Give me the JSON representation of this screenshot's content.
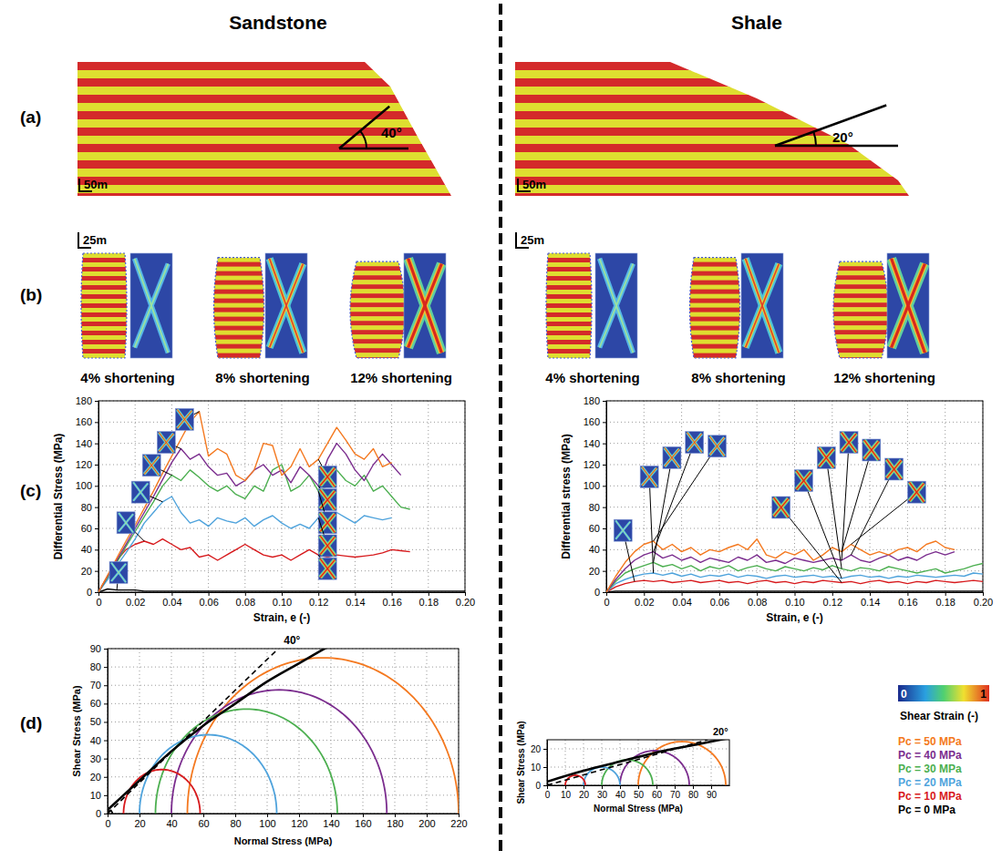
{
  "figure": {
    "columns": [
      {
        "title": "Sandstone",
        "slope_angle": "40°",
        "scale_a": "50m",
        "scale_b": "25m",
        "stages": [
          "4% shortening",
          "8% shortening",
          "12% shortening"
        ]
      },
      {
        "title": "Shale",
        "slope_angle": "20°",
        "scale_a": "50m",
        "scale_b": "25m",
        "stages": [
          "4% shortening",
          "8% shortening",
          "12% shortening"
        ]
      }
    ],
    "row_labels": [
      "(a)",
      "(b)",
      "(c)",
      "(d)"
    ],
    "colorbar": {
      "label": "Shear Strain (-)",
      "range": [
        0,
        1
      ],
      "ticks": [
        0,
        1
      ]
    }
  },
  "chart_data": [
    {
      "type": "line",
      "x_label": "Strain, e (-)",
      "y_label": "Differential Stress (MPa)",
      "xlim": [
        0,
        0.2
      ],
      "xticks": [
        0,
        0.02,
        0.04,
        0.06,
        0.08,
        {
          "value": 0.1,
          "label": "0.10"
        },
        0.12,
        0.14,
        0.16,
        0.18,
        {
          "value": 0.2,
          "label": "0.20"
        }
      ],
      "ylim": [
        0,
        180
      ],
      "yticks": [
        0,
        20,
        40,
        60,
        80,
        100,
        120,
        140,
        160,
        180
      ],
      "grid": true,
      "legend": "right",
      "x": [
        0,
        0.005,
        0.01,
        0.015,
        0.02,
        0.025,
        0.03,
        0.035,
        0.04,
        0.045,
        0.05,
        0.055,
        0.06,
        0.065,
        0.07,
        0.075,
        0.08,
        0.085,
        0.09,
        0.095,
        0.1,
        0.105,
        0.11,
        0.115,
        0.12,
        0.125,
        0.13,
        0.135,
        0.14,
        0.145,
        0.15,
        0.155,
        0.16,
        0.165,
        0.17,
        0.175,
        0.18,
        0.185,
        0.19,
        0.195,
        0.2
      ],
      "series": [
        {
          "name": "Pc = 50 MPa",
          "color": "#f47920",
          "values": [
            0,
            16,
            32,
            48,
            63,
            79,
            95,
            112,
            128,
            144,
            160,
            170,
            128,
            135,
            130,
            110,
            105,
            115,
            140,
            138,
            110,
            118,
            135,
            118,
            125,
            140,
            155,
            143,
            130,
            125,
            135,
            118,
            122,
            null,
            null,
            null,
            null,
            null,
            null,
            null,
            null
          ]
        },
        {
          "name": "Pc = 40 MPa",
          "color": "#7b2d8e",
          "values": [
            0,
            15,
            30,
            45,
            60,
            75,
            90,
            106,
            122,
            135,
            125,
            130,
            118,
            110,
            112,
            100,
            105,
            115,
            120,
            110,
            115,
            103,
            118,
            110,
            100,
            125,
            140,
            130,
            115,
            105,
            120,
            130,
            120,
            110,
            null,
            null,
            null,
            null,
            null,
            null,
            null
          ]
        },
        {
          "name": "Pc = 30 MPa",
          "color": "#4caf50",
          "values": [
            0,
            14,
            28,
            43,
            57,
            71,
            85,
            100,
            110,
            105,
            115,
            108,
            100,
            95,
            100,
            92,
            88,
            100,
            95,
            115,
            120,
            95,
            100,
            110,
            95,
            100,
            115,
            105,
            100,
            110,
            95,
            100,
            90,
            80,
            78,
            null,
            null,
            null,
            null,
            null,
            null
          ]
        },
        {
          "name": "Pc = 20 MPa",
          "color": "#4fa3dc",
          "values": [
            0,
            12,
            25,
            37,
            50,
            65,
            75,
            85,
            90,
            75,
            65,
            68,
            62,
            70,
            67,
            65,
            70,
            62,
            68,
            72,
            65,
            60,
            64,
            60,
            70,
            65,
            75,
            70,
            65,
            72,
            70,
            68,
            70,
            null,
            null,
            null,
            null,
            null,
            null,
            null,
            null
          ]
        },
        {
          "name": "Pc = 10 MPa",
          "color": "#d7191c",
          "values": [
            0,
            15,
            30,
            40,
            45,
            48,
            45,
            50,
            45,
            40,
            42,
            33,
            35,
            30,
            35,
            40,
            45,
            40,
            35,
            33,
            35,
            30,
            35,
            40,
            35,
            33,
            35,
            34,
            33,
            34,
            35,
            37,
            40,
            39,
            38,
            null,
            null,
            null,
            null,
            null,
            null
          ]
        },
        {
          "name": "Pc = 0 MPa",
          "color": "#000000",
          "values": [
            0,
            3,
            2,
            2,
            2,
            1,
            1,
            1,
            1,
            1,
            1,
            1,
            1,
            1,
            1,
            1,
            1,
            1,
            1,
            1,
            1,
            1,
            1,
            1,
            1,
            1,
            1,
            1,
            1,
            1,
            1,
            1,
            1,
            1,
            1,
            1,
            1,
            1,
            1,
            1,
            1
          ]
        }
      ]
    },
    {
      "type": "line",
      "x_label": "Strain, e (-)",
      "y_label": "Differential stress (MPa)",
      "xlim": [
        0,
        0.2
      ],
      "xticks": [
        0,
        0.02,
        0.04,
        0.06,
        0.08,
        {
          "value": 0.1,
          "label": "0.10"
        },
        0.12,
        0.14,
        0.16,
        0.18,
        {
          "value": 0.2,
          "label": "0.20"
        }
      ],
      "ylim": [
        0,
        180
      ],
      "yticks": [
        0,
        20,
        40,
        60,
        80,
        100,
        120,
        140,
        160,
        180
      ],
      "grid": true,
      "x": [
        0,
        0.005,
        0.01,
        0.015,
        0.02,
        0.025,
        0.03,
        0.035,
        0.04,
        0.045,
        0.05,
        0.055,
        0.06,
        0.065,
        0.07,
        0.075,
        0.08,
        0.085,
        0.09,
        0.095,
        0.1,
        0.105,
        0.11,
        0.115,
        0.12,
        0.125,
        0.13,
        0.135,
        0.14,
        0.145,
        0.15,
        0.155,
        0.16,
        0.165,
        0.17,
        0.175,
        0.18,
        0.185,
        0.19,
        0.195,
        0.2
      ],
      "series": [
        {
          "color": "#f47920",
          "values": [
            0,
            15,
            28,
            38,
            45,
            48,
            40,
            45,
            38,
            42,
            35,
            40,
            38,
            42,
            45,
            40,
            50,
            35,
            32,
            38,
            35,
            40,
            30,
            35,
            42,
            38,
            45,
            40,
            35,
            38,
            35,
            40,
            42,
            38,
            45,
            48,
            42,
            40,
            null,
            null,
            null
          ]
        },
        {
          "color": "#7b2d8e",
          "values": [
            0,
            12,
            22,
            30,
            35,
            38,
            32,
            35,
            30,
            33,
            28,
            32,
            30,
            28,
            33,
            30,
            35,
            28,
            30,
            27,
            32,
            30,
            28,
            30,
            32,
            30,
            35,
            30,
            28,
            32,
            35,
            30,
            33,
            30,
            35,
            38,
            35,
            38,
            null,
            null,
            null
          ]
        },
        {
          "color": "#4caf50",
          "values": [
            0,
            10,
            18,
            22,
            25,
            28,
            24,
            26,
            22,
            25,
            20,
            24,
            22,
            25,
            20,
            23,
            25,
            22,
            20,
            24,
            22,
            20,
            23,
            21,
            25,
            22,
            20,
            23,
            22,
            20,
            24,
            22,
            20,
            18,
            20,
            22,
            18,
            20,
            22,
            25,
            27
          ]
        },
        {
          "color": "#4fa3dc",
          "values": [
            0,
            8,
            12,
            15,
            17,
            18,
            16,
            18,
            15,
            17,
            14,
            16,
            15,
            17,
            14,
            16,
            15,
            13,
            15,
            16,
            14,
            15,
            16,
            14,
            15,
            13,
            15,
            16,
            14,
            15,
            13,
            15,
            14,
            16,
            15,
            14,
            15,
            16,
            15,
            18,
            17
          ]
        },
        {
          "color": "#d7191c",
          "values": [
            0,
            5,
            8,
            10,
            11,
            10,
            11,
            9,
            10,
            11,
            9,
            10,
            11,
            9,
            10,
            8,
            10,
            11,
            9,
            10,
            8,
            10,
            9,
            11,
            10,
            9,
            10,
            8,
            10,
            11,
            9,
            10,
            8,
            10,
            9,
            11,
            10,
            9,
            10,
            11,
            10
          ]
        },
        {
          "color": "#000000",
          "values": [
            0,
            1,
            1,
            1,
            1,
            1,
            1,
            1,
            1,
            1,
            1,
            1,
            1,
            1,
            1,
            1,
            1,
            1,
            1,
            1,
            1,
            1,
            1,
            1,
            1,
            1,
            1,
            1,
            1,
            1,
            1,
            1,
            1,
            1,
            1,
            1,
            1,
            1,
            1,
            1,
            1
          ]
        }
      ]
    },
    {
      "type": "mohr",
      "x_label": "Normal Stress (MPa)",
      "y_label": "Shear Stress (MPa)",
      "xlim": [
        0,
        220
      ],
      "xticks": [
        0,
        20,
        40,
        60,
        80,
        100,
        120,
        140,
        160,
        180,
        200,
        220
      ],
      "ylim": [
        0,
        90
      ],
      "yticks": [
        0,
        10,
        20,
        30,
        40,
        50,
        60,
        70,
        80,
        90
      ],
      "grid": true,
      "circles": [
        {
          "color": "#f47920",
          "sigma3": 50,
          "sigma1": 220
        },
        {
          "color": "#7b2d8e",
          "sigma3": 40,
          "sigma1": 175
        },
        {
          "color": "#4caf50",
          "sigma3": 30,
          "sigma1": 144
        },
        {
          "color": "#4fa3dc",
          "sigma3": 20,
          "sigma1": 106
        },
        {
          "color": "#d7191c",
          "sigma3": 10,
          "sigma1": 58
        },
        {
          "color": "#000000",
          "sigma3": 0,
          "sigma1": 3
        }
      ],
      "envelope": {
        "x": [
          0,
          20,
          40,
          60,
          80,
          100,
          120,
          140
        ],
        "y": [
          2,
          18,
          34,
          48,
          60,
          72,
          82,
          92
        ]
      },
      "tangent": {
        "x": [
          0,
          107
        ],
        "y": [
          0,
          90
        ],
        "label": "40°"
      }
    },
    {
      "type": "mohr",
      "x_label": "Normal Stress (MPa)",
      "y_label": "Shear Stress (MPa)",
      "xlim": [
        0,
        100
      ],
      "xticks": [
        0,
        10,
        20,
        30,
        40,
        50,
        60,
        70,
        80,
        90
      ],
      "ylim": [
        0,
        25
      ],
      "yticks": [
        0,
        10,
        20
      ],
      "grid": true,
      "circles": [
        {
          "color": "#f47920",
          "sigma3": 50,
          "sigma1": 98
        },
        {
          "color": "#7b2d8e",
          "sigma3": 40,
          "sigma1": 78
        },
        {
          "color": "#4caf50",
          "sigma3": 30,
          "sigma1": 58
        },
        {
          "color": "#4fa3dc",
          "sigma3": 20,
          "sigma1": 40
        },
        {
          "color": "#d7191c",
          "sigma3": 10,
          "sigma1": 21
        },
        {
          "color": "#000000",
          "sigma3": 0,
          "sigma1": 1
        }
      ],
      "envelope": {
        "x": [
          0,
          20,
          40,
          60,
          80,
          100
        ],
        "y": [
          2,
          8,
          13,
          18,
          22,
          26
        ]
      },
      "tangent": {
        "x": [
          0,
          88
        ],
        "y": [
          0,
          25
        ],
        "label": "20°"
      }
    }
  ]
}
